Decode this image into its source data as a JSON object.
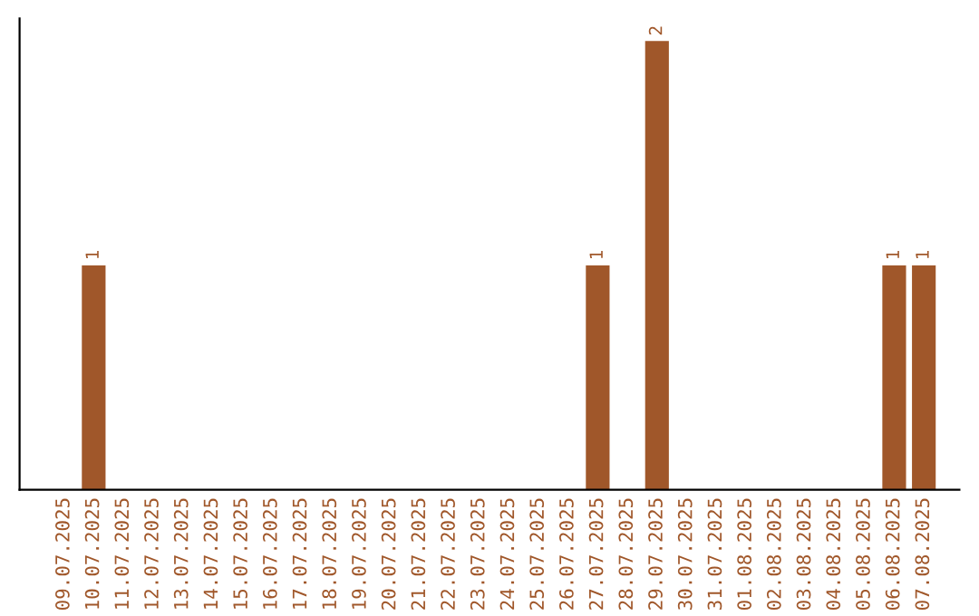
{
  "chart_data": {
    "type": "bar",
    "categories": [
      "09.07.2025",
      "10.07.2025",
      "11.07.2025",
      "12.07.2025",
      "13.07.2025",
      "14.07.2025",
      "15.07.2025",
      "16.07.2025",
      "17.07.2025",
      "18.07.2025",
      "19.07.2025",
      "20.07.2025",
      "21.07.2025",
      "22.07.2025",
      "23.07.2025",
      "24.07.2025",
      "25.07.2025",
      "26.07.2025",
      "27.07.2025",
      "28.07.2025",
      "29.07.2025",
      "30.07.2025",
      "31.07.2025",
      "01.08.2025",
      "02.08.2025",
      "03.08.2025",
      "04.08.2025",
      "05.08.2025",
      "06.08.2025",
      "07.08.2025"
    ],
    "values": [
      0,
      1,
      0,
      0,
      0,
      0,
      0,
      0,
      0,
      0,
      0,
      0,
      0,
      0,
      0,
      0,
      0,
      0,
      1,
      0,
      2,
      0,
      0,
      0,
      0,
      0,
      0,
      0,
      1,
      1
    ],
    "value_labels": [
      null,
      "1",
      null,
      null,
      null,
      null,
      null,
      null,
      null,
      null,
      null,
      null,
      null,
      null,
      null,
      null,
      null,
      null,
      "1",
      null,
      "2",
      null,
      null,
      null,
      null,
      null,
      null,
      null,
      "1",
      "1"
    ],
    "color": "#a0572a",
    "grid": false,
    "legend": false
  }
}
